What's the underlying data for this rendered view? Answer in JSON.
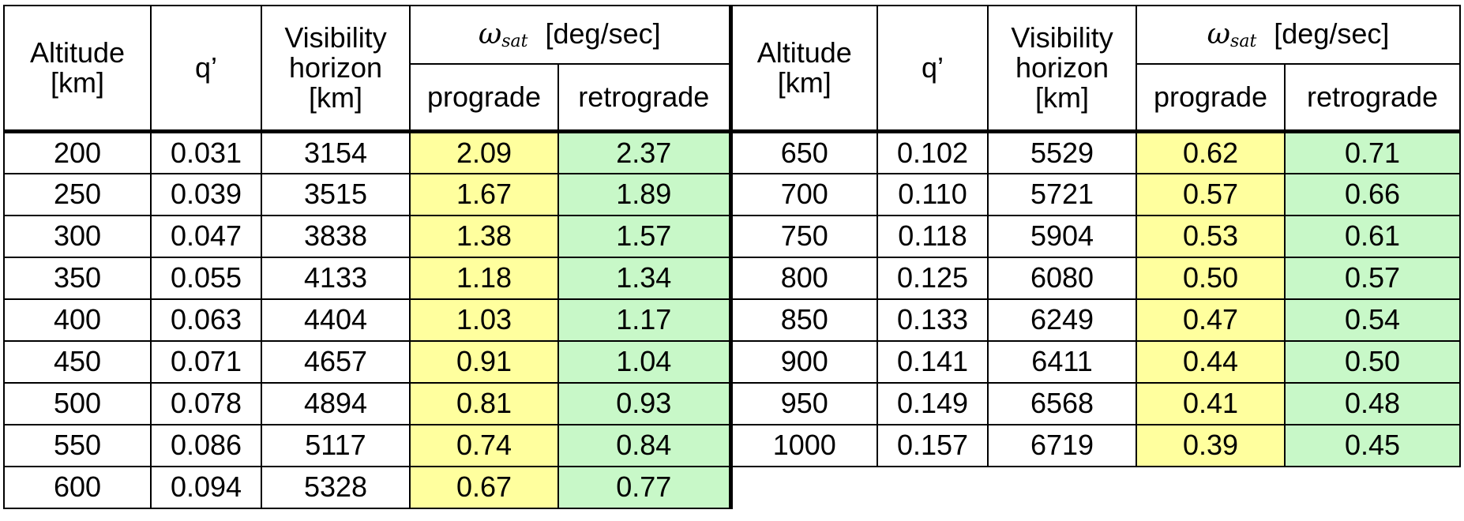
{
  "headers": {
    "altitude": "Altitude [km]",
    "q_prime": "q’",
    "visibility_horizon": "Visibility horizon [km]",
    "omega_symbol": "ω",
    "omega_subscript": "sat",
    "omega_unit": "[deg/sec]",
    "prograde": "prograde",
    "retrograde": "retrograde"
  },
  "left_rows": [
    {
      "altitude": "200",
      "q": "0.031",
      "horizon": "3154",
      "prograde": "2.09",
      "retrograde": "2.37"
    },
    {
      "altitude": "250",
      "q": "0.039",
      "horizon": "3515",
      "prograde": "1.67",
      "retrograde": "1.89"
    },
    {
      "altitude": "300",
      "q": "0.047",
      "horizon": "3838",
      "prograde": "1.38",
      "retrograde": "1.57"
    },
    {
      "altitude": "350",
      "q": "0.055",
      "horizon": "4133",
      "prograde": "1.18",
      "retrograde": "1.34"
    },
    {
      "altitude": "400",
      "q": "0.063",
      "horizon": "4404",
      "prograde": "1.03",
      "retrograde": "1.17"
    },
    {
      "altitude": "450",
      "q": "0.071",
      "horizon": "4657",
      "prograde": "0.91",
      "retrograde": "1.04"
    },
    {
      "altitude": "500",
      "q": "0.078",
      "horizon": "4894",
      "prograde": "0.81",
      "retrograde": "0.93"
    },
    {
      "altitude": "550",
      "q": "0.086",
      "horizon": "5117",
      "prograde": "0.74",
      "retrograde": "0.84"
    },
    {
      "altitude": "600",
      "q": "0.094",
      "horizon": "5328",
      "prograde": "0.67",
      "retrograde": "0.77"
    }
  ],
  "right_rows": [
    {
      "altitude": "650",
      "q": "0.102",
      "horizon": "5529",
      "prograde": "0.62",
      "retrograde": "0.71"
    },
    {
      "altitude": "700",
      "q": "0.110",
      "horizon": "5721",
      "prograde": "0.57",
      "retrograde": "0.66"
    },
    {
      "altitude": "750",
      "q": "0.118",
      "horizon": "5904",
      "prograde": "0.53",
      "retrograde": "0.61"
    },
    {
      "altitude": "800",
      "q": "0.125",
      "horizon": "6080",
      "prograde": "0.50",
      "retrograde": "0.57"
    },
    {
      "altitude": "850",
      "q": "0.133",
      "horizon": "6249",
      "prograde": "0.47",
      "retrograde": "0.54"
    },
    {
      "altitude": "900",
      "q": "0.141",
      "horizon": "6411",
      "prograde": "0.44",
      "retrograde": "0.50"
    },
    {
      "altitude": "950",
      "q": "0.149",
      "horizon": "6568",
      "prograde": "0.41",
      "retrograde": "0.48"
    },
    {
      "altitude": "1000",
      "q": "0.157",
      "horizon": "6719",
      "prograde": "0.39",
      "retrograde": "0.45"
    }
  ],
  "colors": {
    "prograde_fill": "#ffff9e",
    "retrograde_fill": "#c8f8c8",
    "border": "#000000"
  }
}
